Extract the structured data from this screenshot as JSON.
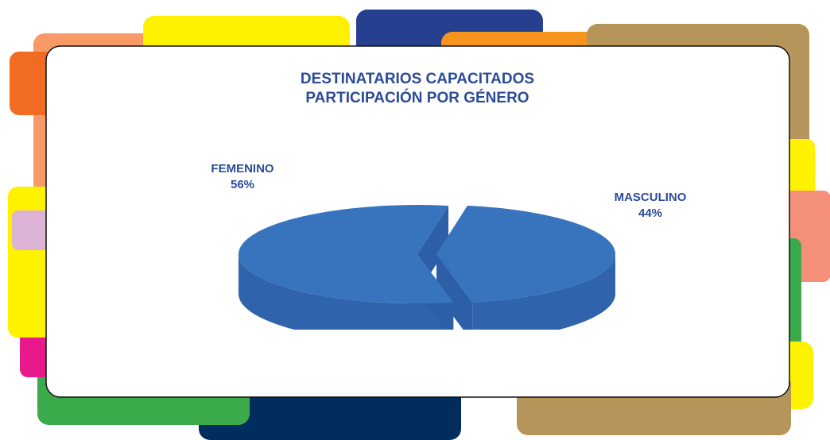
{
  "chart_data": {
    "type": "pie",
    "title": "DESTINATARIOS CAPACITADOS",
    "subtitle": "PARTICIPACIÓN POR GÉNERO",
    "categories": [
      "FEMENINO",
      "MASCULINO"
    ],
    "values": [
      56,
      44
    ],
    "value_labels": [
      "56%",
      "44%"
    ],
    "color": "#3874bd"
  }
}
